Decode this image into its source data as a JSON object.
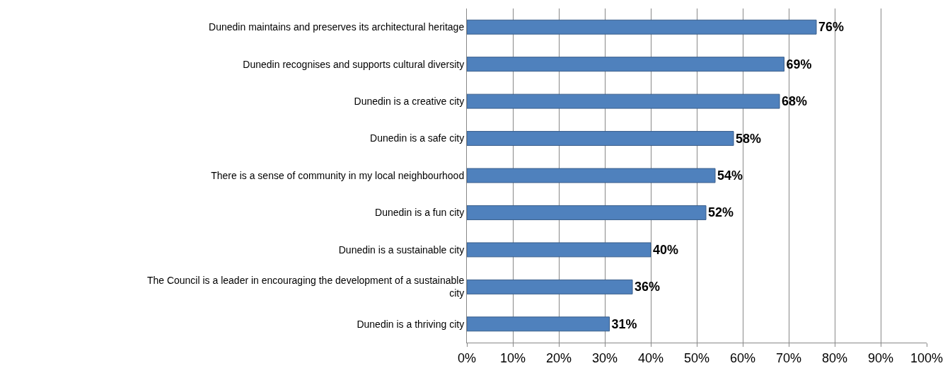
{
  "chart_data": {
    "type": "bar",
    "orientation": "horizontal",
    "categories": [
      "Dunedin maintains and preserves its architectural heritage",
      "Dunedin recognises and supports cultural diversity",
      "Dunedin is a creative city",
      "Dunedin is a safe city",
      "There is a sense of community in my local neighbourhood",
      "Dunedin is a fun city",
      "Dunedin is a sustainable city",
      "The Council is a leader in encouraging the development of a sustainable city",
      "Dunedin is a thriving city"
    ],
    "values": [
      76,
      69,
      68,
      58,
      54,
      52,
      40,
      36,
      31
    ],
    "value_labels": [
      "76%",
      "69%",
      "68%",
      "58%",
      "54%",
      "52%",
      "40%",
      "36%",
      "31%"
    ],
    "color": "#4f81bd",
    "xlim": [
      0,
      100
    ],
    "xticks": [
      {
        "value": 0,
        "label": "0%"
      },
      {
        "value": 10,
        "label": "10%"
      },
      {
        "value": 20,
        "label": "20%"
      },
      {
        "value": 30,
        "label": "30%"
      },
      {
        "value": 40,
        "label": "40%"
      },
      {
        "value": 50,
        "label": "50%"
      },
      {
        "value": 60,
        "label": "60%"
      },
      {
        "value": 70,
        "label": "70%"
      },
      {
        "value": 80,
        "label": "80%"
      },
      {
        "value": 90,
        "label": "90%"
      },
      {
        "value": 100,
        "label": "100%"
      }
    ],
    "grid": "x",
    "legend": false
  }
}
